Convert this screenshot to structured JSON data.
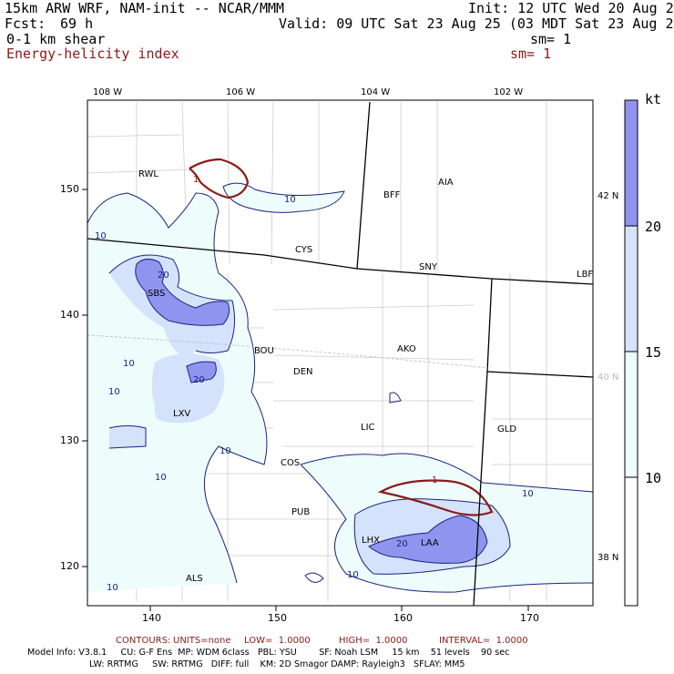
{
  "header": {
    "model": "15km ARW WRF, NAM-init -- NCAR/MMM",
    "init": "Init: 12 UTC Wed 20 Aug 25",
    "fcst_label": "Fcst:",
    "fcst_value": "69 h",
    "valid": "Valid: 09 UTC Sat 23 Aug 25 (03 MDT Sat 23 Aug 25)",
    "field1": "0-1 km shear",
    "field1_sm": "sm= 1",
    "field2": "Energy-helicity index",
    "field2_sm": "sm= 1"
  },
  "map": {
    "lon_labels": [
      "108 W",
      "106 W",
      "104 W",
      "102 W"
    ],
    "lat_labels": [
      "42 N",
      "40 N",
      "38 N"
    ],
    "x_ticks": [
      "140",
      "150",
      "160",
      "170"
    ],
    "y_ticks": [
      "150",
      "140",
      "130",
      "120"
    ],
    "stations": [
      "RWL",
      "BFF",
      "AIA",
      "CYS",
      "SNY",
      "LBF",
      "SBS",
      "AKO",
      "BOU",
      "DEN",
      "LIC",
      "GLD",
      "LXV",
      "COS",
      "PUB",
      "LHX",
      "LAA",
      "ALS"
    ],
    "shear_contour_labels": [
      "10",
      "10",
      "20",
      "10",
      "10",
      "20",
      "10",
      "10",
      "10",
      "10",
      "20",
      "10"
    ],
    "ehi_contour_labels": [
      "1",
      "1"
    ],
    "colors": {
      "shear_line": "#1a237e",
      "ehi_line": "#8b1a1a",
      "fill10": "#eefcfc",
      "fill15": "#d5e2fb",
      "fill20": "#8f95ee",
      "border": "#000000",
      "county": "#c8c8c8"
    }
  },
  "colorbar": {
    "unit": "kt",
    "levels": [
      "10",
      "15",
      "20"
    ]
  },
  "footer": {
    "contours_label": "CONTOURS:",
    "units": "UNITS=none",
    "low": "LOW=  1.0000",
    "high": "HIGH=  1.0000",
    "interval": "INTERVAL=  1.0000",
    "model_info_1": "Model Info: V3.8.1     CU: G-F Ens  MP: WDM 6class   PBL: YSU        SF: Noah LSM     15 km    51 levels    90 sec",
    "model_info_2": "LW: RRTMG     SW: RRTMG   DIFF: full    KM: 2D Smagor DAMP: Rayleigh3   SFLAY: MM5"
  }
}
